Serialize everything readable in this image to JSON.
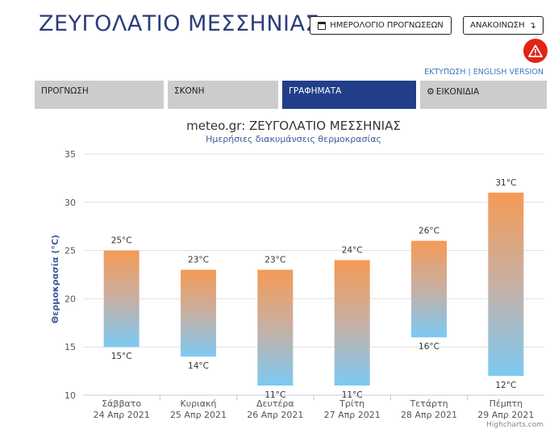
{
  "header": {
    "title": "ΖΕΥΓΟΛΑΤΙΟ ΜΕΣΣΗΝΙΑΣ",
    "calendar_button": "ΗΜΕΡΟΛΟΓΙΟ ΠΡΟΓΝΩΣΕΩΝ",
    "calendar_icon": "calendar-icon",
    "announce_button": "ΑΝΑΚΟΙΝΩΣΗ",
    "announce_arrow": "↴",
    "alert_icon": "warning-triangle-icon",
    "alert_color": "#e2231a"
  },
  "links": {
    "print": "ΕΚΤΥΠΩΣΗ",
    "separator": "|",
    "english": "ENGLISH VERSION"
  },
  "tabs": [
    {
      "label": "ΠΡΟΓΝΩΣΗ",
      "active": false
    },
    {
      "label": "ΣΚΟΝΗ",
      "active": false
    },
    {
      "label": "ΓΡΑΦΗΜΑΤΑ",
      "active": true
    },
    {
      "label": "ΕΙΚΟΝΙΔΙΑ",
      "active": false,
      "icon": "gear-icon"
    }
  ],
  "colors": {
    "title": "#2c3e7a",
    "tab_active": "#233e89",
    "tab_inactive": "#cccccc",
    "bar_top": "#f59a55",
    "bar_bottom": "#7cc9f3"
  },
  "chart_data": {
    "type": "bar",
    "subtype": "columnrange",
    "title": "meteo.gr: ΖΕΥΓΟΛΑΤΙΟ ΜΕΣΣΗΝΙΑΣ",
    "subtitle": "Ημερήσιες διακυμάνσεις θερμοκρασίας",
    "ylabel": "Θερμοκρασία (°C)",
    "ylim": [
      10,
      35
    ],
    "yticks": [
      10,
      15,
      20,
      25,
      30,
      35
    ],
    "grid": true,
    "categories": [
      {
        "day": "Σάββατο",
        "date": "24 Απρ 2021"
      },
      {
        "day": "Κυριακή",
        "date": "25 Απρ 2021"
      },
      {
        "day": "Δευτέρα",
        "date": "26 Απρ 2021"
      },
      {
        "day": "Τρίτη",
        "date": "27 Απρ 2021"
      },
      {
        "day": "Τετάρτη",
        "date": "28 Απρ 2021"
      },
      {
        "day": "Πέμπτη",
        "date": "29 Απρ 2021"
      }
    ],
    "max": [
      25,
      23,
      23,
      24,
      26,
      31
    ],
    "min": [
      15,
      14,
      11,
      11,
      16,
      12
    ],
    "unit": "°C",
    "credits": "Highcharts.com"
  }
}
